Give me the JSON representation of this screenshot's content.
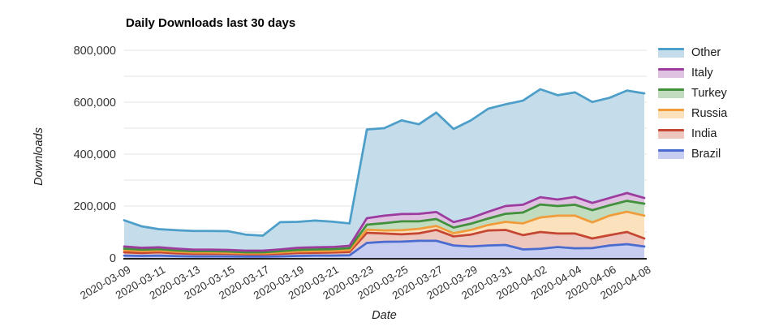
{
  "title": "Daily Downloads last 30 days",
  "axes": {
    "y_title": "Downloads",
    "x_title": "Date"
  },
  "chart_data": {
    "type": "area",
    "stacked": true,
    "title": "Daily Downloads last 30 days",
    "xlabel": "Date",
    "ylabel": "Downloads",
    "ylim": [
      0,
      800000
    ],
    "grid": "horizontal",
    "y_gridline_step": 100000,
    "y_tick_values": [
      0,
      200000,
      400000,
      600000,
      800000
    ],
    "y_tick_labels": [
      "0",
      "200,000",
      "400,000",
      "600,000",
      "800,000"
    ],
    "x_tick_every": 2,
    "legend_position": "right",
    "x": [
      "2020-03-09",
      "2020-03-10",
      "2020-03-11",
      "2020-03-12",
      "2020-03-13",
      "2020-03-14",
      "2020-03-15",
      "2020-03-16",
      "2020-03-17",
      "2020-03-18",
      "2020-03-19",
      "2020-03-20",
      "2020-03-21",
      "2020-03-22",
      "2020-03-23",
      "2020-03-24",
      "2020-03-25",
      "2020-03-26",
      "2020-03-27",
      "2020-03-28",
      "2020-03-29",
      "2020-03-30",
      "2020-03-31",
      "2020-04-01",
      "2020-04-02",
      "2020-04-03",
      "2020-04-04",
      "2020-04-05",
      "2020-04-06",
      "2020-04-07",
      "2020-04-08"
    ],
    "series": [
      {
        "name": "Brazil",
        "line_color": "#4a6bd0",
        "fill_color": "#c6cdf1",
        "values": [
          9000,
          8000,
          9000,
          7000,
          6000,
          6000,
          6000,
          5000,
          5000,
          6000,
          8000,
          9000,
          9000,
          10000,
          58000,
          62000,
          63000,
          66000,
          66000,
          48000,
          44000,
          48000,
          50000,
          33000,
          35000,
          42000,
          37000,
          38000,
          48000,
          53000,
          44000
        ]
      },
      {
        "name": "India",
        "line_color": "#c54632",
        "fill_color": "#edc6bd",
        "values": [
          13000,
          11000,
          13000,
          11000,
          10000,
          10000,
          10000,
          9000,
          9000,
          10000,
          11000,
          11000,
          12000,
          13000,
          39000,
          32000,
          28000,
          29000,
          42000,
          35000,
          46000,
          58000,
          58000,
          55000,
          65000,
          52000,
          57000,
          37000,
          40000,
          47000,
          31000
        ]
      },
      {
        "name": "Russia",
        "line_color": "#f19c3b",
        "fill_color": "#fbe2bd",
        "values": [
          8000,
          7000,
          6000,
          6000,
          5000,
          5000,
          4000,
          4000,
          4000,
          5000,
          6000,
          6000,
          6000,
          7000,
          12000,
          12000,
          16000,
          17000,
          15000,
          12000,
          18000,
          21000,
          31000,
          45000,
          56000,
          69000,
          69000,
          62000,
          75000,
          78000,
          88000
        ]
      },
      {
        "name": "Turkey",
        "line_color": "#41903c",
        "fill_color": "#c2dcc0",
        "values": [
          6000,
          6000,
          6000,
          5000,
          5000,
          5000,
          5000,
          4000,
          4000,
          5000,
          6000,
          7000,
          7000,
          8000,
          19000,
          28000,
          34000,
          29000,
          27000,
          22000,
          24000,
          25000,
          31000,
          42000,
          50000,
          37000,
          42000,
          47000,
          40000,
          42000,
          46000
        ]
      },
      {
        "name": "Italy",
        "line_color": "#9d3c9f",
        "fill_color": "#dfc2e1",
        "values": [
          8000,
          7000,
          7000,
          7000,
          6000,
          6000,
          6000,
          6000,
          6000,
          7000,
          8000,
          8000,
          8000,
          9000,
          25000,
          29000,
          28000,
          29000,
          27000,
          21000,
          22000,
          26000,
          30000,
          30000,
          28000,
          25000,
          30000,
          28000,
          28000,
          30000,
          22000
        ]
      },
      {
        "name": "Other",
        "line_color": "#4d9fca",
        "fill_color": "#c5dcea",
        "values": [
          101000,
          83000,
          70000,
          71000,
          72000,
          72000,
          72000,
          62000,
          58000,
          105000,
          100000,
          103000,
          98000,
          86000,
          342000,
          337000,
          361000,
          345000,
          383000,
          359000,
          376000,
          397000,
          392000,
          401000,
          416000,
          402000,
          403000,
          389000,
          386000,
          395000,
          403000
        ]
      }
    ]
  }
}
